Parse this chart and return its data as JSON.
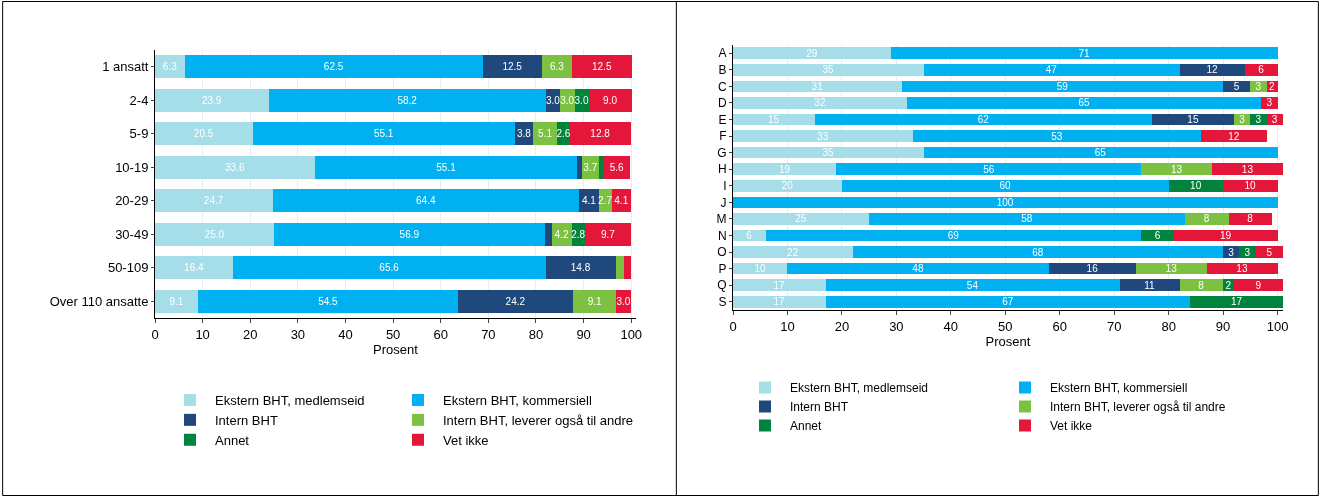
{
  "chart_data": [
    {
      "type": "bar",
      "orientation": "horizontal",
      "stacked": true,
      "xlabel": "Prosent",
      "xlim": [
        0,
        101
      ],
      "xticks": [
        0,
        10,
        20,
        30,
        40,
        50,
        60,
        70,
        80,
        90,
        100
      ],
      "grid": "x",
      "legend": "bottom",
      "categories": [
        "1 ansatt",
        "2-4",
        "5-9",
        "10-19",
        "20-29",
        "30-49",
        "50-109",
        "Over 110 ansatte"
      ],
      "series": [
        {
          "name": "Ekstern BHT, medlemseid",
          "color": "#a5dde9",
          "values": [
            6.3,
            23.9,
            20.5,
            33.6,
            24.7,
            25.0,
            16.4,
            9.1
          ],
          "value_labels": [
            "6.3",
            "23.9",
            "20.5",
            "33.6",
            "24.7",
            "25.0",
            "16.4",
            "9.1"
          ]
        },
        {
          "name": "Ekstern BHT, kommersiell",
          "color": "#00b0f0",
          "values": [
            62.5,
            58.2,
            55.1,
            55.1,
            64.4,
            56.9,
            65.6,
            54.5
          ],
          "value_labels": [
            "62.5",
            "58.2",
            "55.1",
            "55.1",
            "64.4",
            "56.9",
            "65.6",
            "54.5"
          ]
        },
        {
          "name": "Intern BHT",
          "color": "#1f497d",
          "values": [
            12.5,
            3.0,
            3.8,
            0.9,
            4.1,
            1.4,
            14.8,
            24.2
          ],
          "value_labels": [
            "12.5",
            "3.0",
            "3.8",
            null,
            "4.1",
            null,
            "14.8",
            "24.2"
          ]
        },
        {
          "name": "Intern BHT, leverer også til andre",
          "color": "#7dc142",
          "values": [
            6.3,
            3.0,
            5.1,
            3.7,
            2.7,
            4.2,
            1.6,
            9.1
          ],
          "value_labels": [
            "6.3",
            "3.0",
            "5.1",
            "3.7",
            "2.7",
            "4.2",
            null,
            "9.1"
          ]
        },
        {
          "name": "Annet",
          "color": "#00843d",
          "values": [
            0.0,
            3.0,
            2.6,
            0.9,
            0.0,
            2.8,
            0.0,
            0.0
          ],
          "value_labels": [
            null,
            "3.0",
            "2.6",
            null,
            null,
            "2.8",
            null,
            null
          ]
        },
        {
          "name": "Vet ikke",
          "color": "#e4173b",
          "values": [
            12.5,
            9.0,
            12.8,
            5.6,
            4.1,
            9.7,
            1.6,
            3.0
          ],
          "value_labels": [
            "12.5",
            "9.0",
            "12.8",
            "5.6",
            "4.1",
            "9.7",
            null,
            "3.0"
          ]
        }
      ]
    },
    {
      "type": "bar",
      "orientation": "horizontal",
      "stacked": true,
      "xlabel": "Prosent",
      "xlim": [
        0,
        101
      ],
      "xticks": [
        0,
        10,
        20,
        30,
        40,
        50,
        60,
        70,
        80,
        90,
        100
      ],
      "grid": "x",
      "legend": "bottom",
      "categories": [
        "A",
        "B",
        "C",
        "D",
        "E",
        "F",
        "G",
        "H",
        "I",
        "J",
        "M",
        "N",
        "O",
        "P",
        "Q",
        "S"
      ],
      "series": [
        {
          "name": "Ekstern BHT, medlemseid",
          "color": "#a5dde9",
          "values": [
            29,
            35,
            31,
            32,
            15,
            33,
            35,
            19,
            20,
            0,
            25,
            6,
            22,
            10,
            17,
            17
          ],
          "value_labels": [
            "29",
            "35",
            "31",
            "32",
            "15",
            "33",
            "35",
            "19",
            "20",
            null,
            "25",
            "6",
            "22",
            "10",
            "17",
            "17"
          ]
        },
        {
          "name": "Ekstern BHT, kommersiell",
          "color": "#00b0f0",
          "values": [
            71,
            47,
            59,
            65,
            62,
            53,
            65,
            56,
            60,
            100,
            58,
            69,
            68,
            48,
            54,
            67
          ],
          "value_labels": [
            "71",
            "47",
            "59",
            "65",
            "62",
            "53",
            "65",
            "56",
            "60",
            "100",
            "58",
            "69",
            "68",
            "48",
            "54",
            "67"
          ]
        },
        {
          "name": "Intern BHT",
          "color": "#1f497d",
          "values": [
            0,
            12,
            5,
            0,
            15,
            0,
            0,
            0,
            0,
            0,
            0,
            0,
            3,
            16,
            11,
            0
          ],
          "value_labels": [
            null,
            "12",
            "5",
            null,
            "15",
            null,
            null,
            null,
            null,
            null,
            null,
            null,
            "3",
            "16",
            "11",
            null
          ]
        },
        {
          "name": "Intern BHT, leverer også til andre",
          "color": "#7dc142",
          "values": [
            0,
            0,
            3,
            0,
            3,
            0,
            0,
            13,
            0,
            0,
            8,
            0,
            0,
            13,
            8,
            0
          ],
          "value_labels": [
            null,
            null,
            "3",
            null,
            "3",
            null,
            null,
            "13",
            null,
            null,
            "8",
            null,
            null,
            "13",
            "8",
            null
          ]
        },
        {
          "name": "Annet",
          "color": "#00843d",
          "values": [
            0,
            0,
            0,
            0,
            3,
            0,
            0,
            0,
            10,
            0,
            0,
            6,
            3,
            0,
            2,
            17
          ],
          "value_labels": [
            null,
            null,
            null,
            null,
            "3",
            null,
            null,
            null,
            "10",
            null,
            null,
            "6",
            "3",
            null,
            "2",
            "17"
          ]
        },
        {
          "name": "Vet ikke",
          "color": "#e4173b",
          "values": [
            0,
            6,
            2,
            3,
            3,
            12,
            0,
            13,
            10,
            0,
            8,
            19,
            5,
            13,
            9,
            0
          ],
          "value_labels": [
            null,
            "6",
            "2",
            "3",
            "3",
            "12",
            null,
            "13",
            "10",
            null,
            "8",
            "19",
            "5",
            "13",
            "9",
            null
          ]
        }
      ]
    }
  ]
}
